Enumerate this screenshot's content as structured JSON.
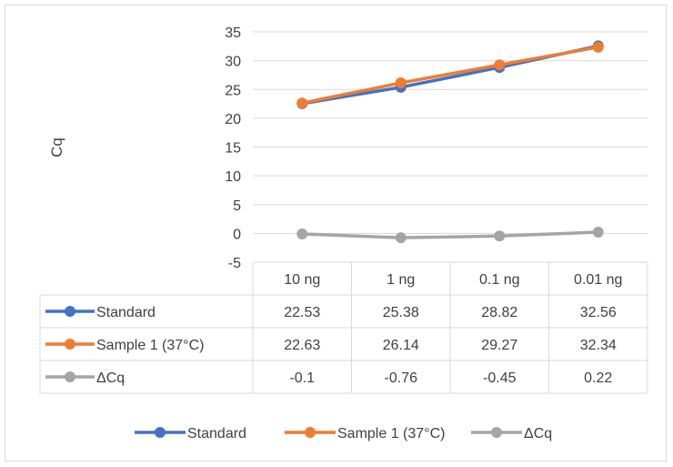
{
  "chart_data": {
    "type": "line",
    "ylabel": "Cq",
    "categories": [
      "10 ng",
      "1 ng",
      "0.1 ng",
      "0.01 ng"
    ],
    "ylim": [
      -5,
      35
    ],
    "yticks": [
      35,
      30,
      25,
      20,
      15,
      10,
      5,
      0,
      -5
    ],
    "grid": true,
    "legend_position": "bottom",
    "data_table": true,
    "series": [
      {
        "name": "Standard",
        "color": "#4472c4",
        "values": [
          22.53,
          25.38,
          28.82,
          32.56
        ],
        "labels": [
          "22.53",
          "25.38",
          "28.82",
          "32.56"
        ]
      },
      {
        "name": "Sample 1 (37°C)",
        "color": "#ed7d31",
        "values": [
          22.63,
          26.14,
          29.27,
          32.34
        ],
        "labels": [
          "22.63",
          "26.14",
          "29.27",
          "32.34"
        ]
      },
      {
        "name": "ΔCq",
        "color": "#a5a5a5",
        "values": [
          -0.1,
          -0.76,
          -0.45,
          0.22
        ],
        "labels": [
          "-0.1",
          "-0.76",
          "-0.45",
          "0.22"
        ]
      }
    ]
  }
}
